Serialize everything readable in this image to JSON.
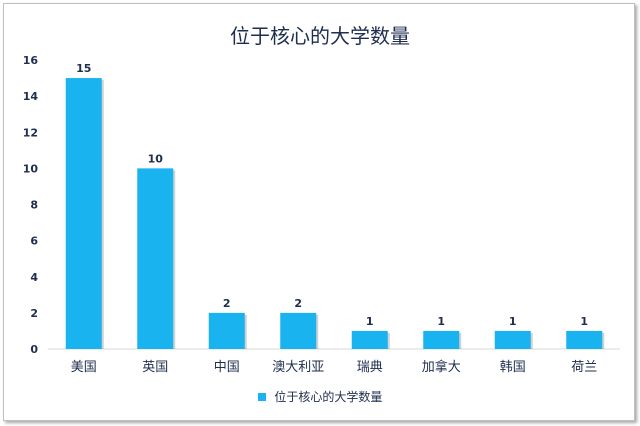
{
  "chart_data": {
    "type": "bar",
    "title": "位于核心的大学数量",
    "categories": [
      "美国",
      "英国",
      "中国",
      "澳大利亚",
      "瑞典",
      "加拿大",
      "韩国",
      "荷兰"
    ],
    "series": [
      {
        "name": "位于核心的大学数量",
        "values": [
          15,
          10,
          2,
          2,
          1,
          1,
          1,
          1
        ]
      }
    ],
    "ylim": [
      0,
      16
    ],
    "yticks": [
      0,
      2,
      4,
      6,
      8,
      10,
      12,
      14,
      16
    ],
    "grid": false,
    "legend": "bottom",
    "data_labels": true,
    "colors": {
      "bar": "#19b3f0",
      "text": "#1f2d4e",
      "axis": "#d9d9d9"
    }
  }
}
